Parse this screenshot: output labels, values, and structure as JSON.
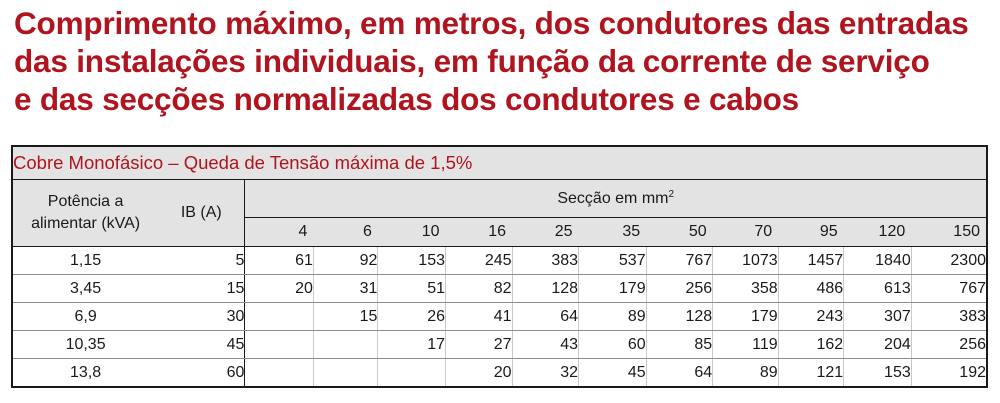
{
  "headline": {
    "line1": "Comprimento máximo, em metros, dos condutores das entradas",
    "line2": "das instalações individuais, em função da corrente de serviço",
    "line3": "e das secções normalizadas dos condutores e cabos"
  },
  "table": {
    "caption": "Cobre Monofásico – Queda de Tensão máxima de 1,5%",
    "col_potencia_line1": "Potência a",
    "col_potencia_line2": "alimentar (kVA)",
    "col_ib": "IB (A)",
    "col_seccao": "Secção em mm",
    "col_seccao_sup": "2",
    "sections": [
      "4",
      "6",
      "10",
      "16",
      "25",
      "35",
      "50",
      "70",
      "95",
      "120",
      "150"
    ],
    "rows": [
      {
        "potencia": "1,15",
        "ib": "5",
        "values": [
          "61",
          "92",
          "153",
          "245",
          "383",
          "537",
          "767",
          "1073",
          "1457",
          "1840",
          "2300"
        ]
      },
      {
        "potencia": "3,45",
        "ib": "15",
        "values": [
          "20",
          "31",
          "51",
          "82",
          "128",
          "179",
          "256",
          "358",
          "486",
          "613",
          "767"
        ]
      },
      {
        "potencia": "6,9",
        "ib": "30",
        "values": [
          "",
          "15",
          "26",
          "41",
          "64",
          "89",
          "128",
          "179",
          "243",
          "307",
          "383"
        ]
      },
      {
        "potencia": "10,35",
        "ib": "45",
        "values": [
          "",
          "",
          "17",
          "27",
          "43",
          "60",
          "85",
          "119",
          "162",
          "204",
          "256"
        ]
      },
      {
        "potencia": "13,8",
        "ib": "60",
        "values": [
          "",
          "",
          "",
          "20",
          "32",
          "45",
          "64",
          "89",
          "121",
          "153",
          "192"
        ]
      }
    ]
  }
}
